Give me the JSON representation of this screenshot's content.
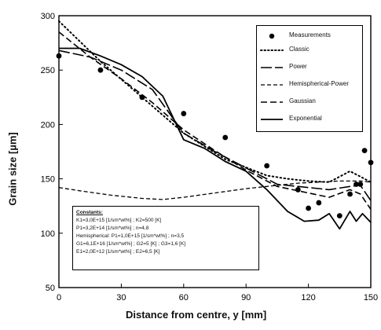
{
  "chart_data": {
    "type": "line",
    "xlabel": "Distance from centre, y [mm]",
    "ylabel": "Grain size [µm]",
    "xlim": [
      0,
      150
    ],
    "ylim": [
      50,
      300
    ],
    "xticks": [
      0,
      30,
      60,
      90,
      120,
      150
    ],
    "yticks": [
      50,
      100,
      150,
      200,
      250,
      300
    ],
    "grid": false,
    "legend_position": "top-right",
    "scatter": {
      "name": "Measurements",
      "x": [
        0,
        20,
        40,
        60,
        80,
        100,
        115,
        120,
        125,
        135,
        140,
        143,
        145,
        147,
        150
      ],
      "y": [
        263,
        250,
        225,
        210,
        188,
        162,
        140,
        123,
        128,
        116,
        136,
        145,
        145,
        176,
        165
      ]
    },
    "series": [
      {
        "name": "Classic",
        "style": "dotted",
        "x": [
          0,
          20,
          40,
          60,
          80,
          100,
          110,
          120,
          130,
          140,
          145,
          150
        ],
        "y": [
          295,
          258,
          225,
          192,
          168,
          153,
          150,
          148,
          147,
          157,
          152,
          147
        ]
      },
      {
        "name": "Power",
        "style": "longdash",
        "x": [
          0,
          15,
          30,
          45,
          60,
          75,
          90,
          105,
          120,
          130,
          140,
          145,
          150
        ],
        "y": [
          268,
          262,
          250,
          232,
          192,
          175,
          160,
          145,
          142,
          140,
          143,
          144,
          130
        ]
      },
      {
        "name": "Hemispherical-Power",
        "style": "shortdash",
        "x": [
          0,
          10,
          25,
          40,
          50,
          60,
          75,
          90,
          105,
          115,
          125,
          135,
          145,
          150
        ],
        "y": [
          142,
          139,
          135,
          132,
          131,
          133,
          137,
          141,
          144,
          146,
          147,
          148,
          148,
          147
        ]
      },
      {
        "name": "Gaussian",
        "style": "dashed",
        "x": [
          0,
          15,
          30,
          45,
          60,
          75,
          90,
          105,
          120,
          130,
          140,
          145,
          150
        ],
        "y": [
          285,
          262,
          242,
          220,
          195,
          176,
          158,
          143,
          137,
          133,
          140,
          136,
          122
        ]
      },
      {
        "name": "Exponential",
        "style": "solid",
        "x": [
          0,
          10,
          20,
          30,
          40,
          50,
          60,
          70,
          80,
          90,
          100,
          110,
          118,
          125,
          130,
          135,
          140,
          143,
          146,
          150
        ],
        "y": [
          270,
          270,
          263,
          255,
          244,
          226,
          186,
          178,
          166,
          157,
          140,
          120,
          111,
          112,
          118,
          104,
          120,
          111,
          118,
          110
        ]
      }
    ],
    "constants": {
      "title": "Constants:",
      "lines": [
        "K1=3,0E+15 [1/sm*wt%] ; K2=500 [K]",
        "P1=3,2E+14 [1/sm*wt%] ; n=4,8",
        "Hemispherical: P1=1,0E+15 [1/sm*wt%] ; n=3,5",
        "G1=6,1E+16 [1/sm*wt%] ; G2=5 [K] ; G3=1,6 [K]",
        "E1=2,0E+12 [1/sm*wt%] ; E2=6,5 [K]"
      ]
    }
  }
}
